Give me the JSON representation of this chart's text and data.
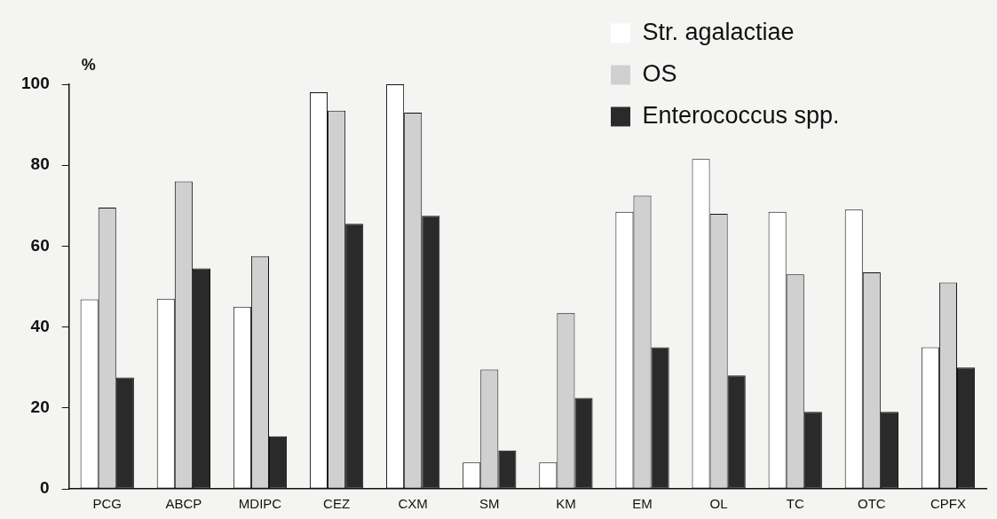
{
  "chart_data": {
    "type": "bar",
    "ylabel": "%",
    "categories": [
      "PCG",
      "ABCP",
      "MDIPC",
      "CEZ",
      "CXM",
      "SM",
      "KM",
      "EM",
      "OL",
      "TC",
      "OTC",
      "CPFX"
    ],
    "series": [
      {
        "name": "Str. agalactiae",
        "color": "#ffffff",
        "values": [
          46.8,
          47,
          45,
          98,
          100,
          6.5,
          6.5,
          68.5,
          81.5,
          68.5,
          69,
          35
        ]
      },
      {
        "name": "OS",
        "color": "#d0d0d0",
        "values": [
          69.5,
          76,
          57.5,
          93.5,
          93,
          29.5,
          43.5,
          72.5,
          68,
          53,
          53.5,
          51
        ]
      },
      {
        "name": "Enterococcus spp.",
        "color": "#2a2a2a",
        "values": [
          27.5,
          54.5,
          13,
          65.5,
          67.5,
          9.5,
          22.5,
          35,
          28,
          19,
          19,
          30
        ]
      }
    ],
    "ylim": [
      0,
      100
    ],
    "yticks": [
      0,
      20,
      40,
      60,
      80,
      100
    ],
    "grid": false,
    "legend": "top right"
  }
}
